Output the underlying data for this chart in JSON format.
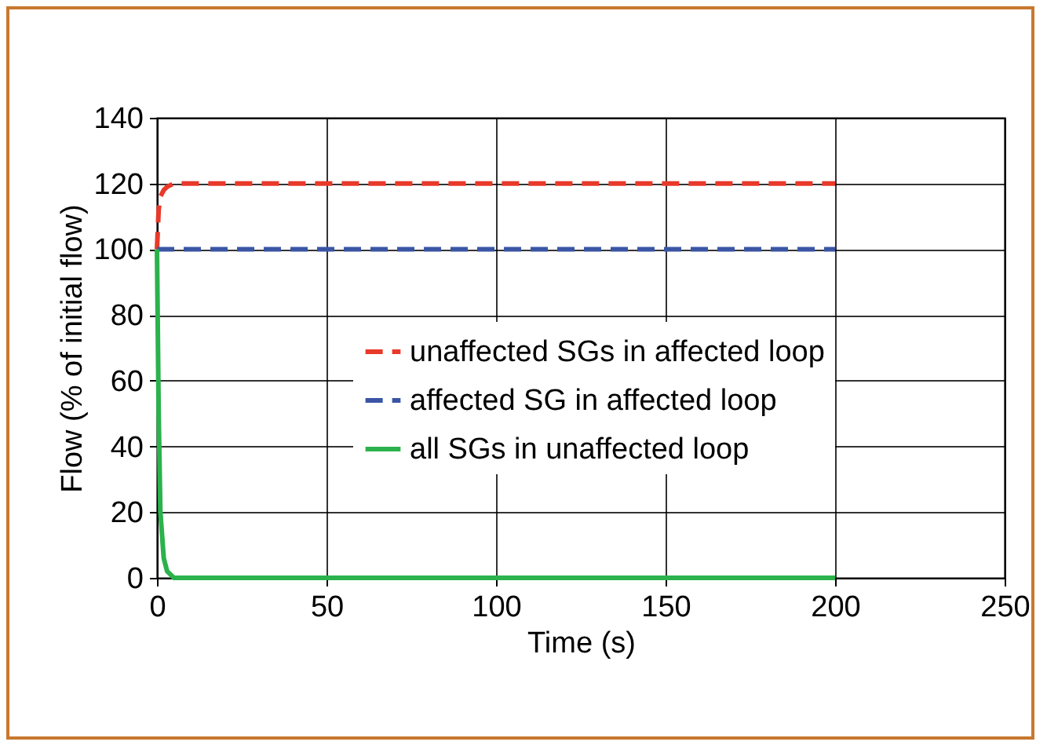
{
  "chart_data": {
    "type": "line",
    "xlabel": "Time (s)",
    "ylabel": "Flow (% of initial flow)",
    "xlim": [
      0,
      250
    ],
    "xticks": [
      0,
      50,
      100,
      150,
      200,
      250
    ],
    "ylim": [
      0,
      140
    ],
    "yticks": [
      0,
      20,
      40,
      60,
      80,
      100,
      120,
      140
    ],
    "grid": true,
    "legend": "right",
    "marker": "none",
    "series": [
      {
        "name": "unaffected SGs in affected loop",
        "color": "#e8392a",
        "line_style": "dashed",
        "x": [
          0,
          0.5,
          1,
          2,
          3,
          5,
          200
        ],
        "values": [
          100,
          112,
          116,
          118,
          119,
          120,
          120
        ]
      },
      {
        "name": "affected SG   in affected loop",
        "color": "#3a55a4",
        "line_style": "dashed",
        "x": [
          0,
          200
        ],
        "values": [
          100,
          100
        ]
      },
      {
        "name": "all SGs in unaffected loop",
        "color": "#2bb24c",
        "line_style": "solid",
        "x": [
          0,
          0.5,
          1,
          2,
          3,
          5,
          200
        ],
        "values": [
          100,
          50,
          20,
          6,
          2,
          0,
          0
        ]
      }
    ]
  }
}
